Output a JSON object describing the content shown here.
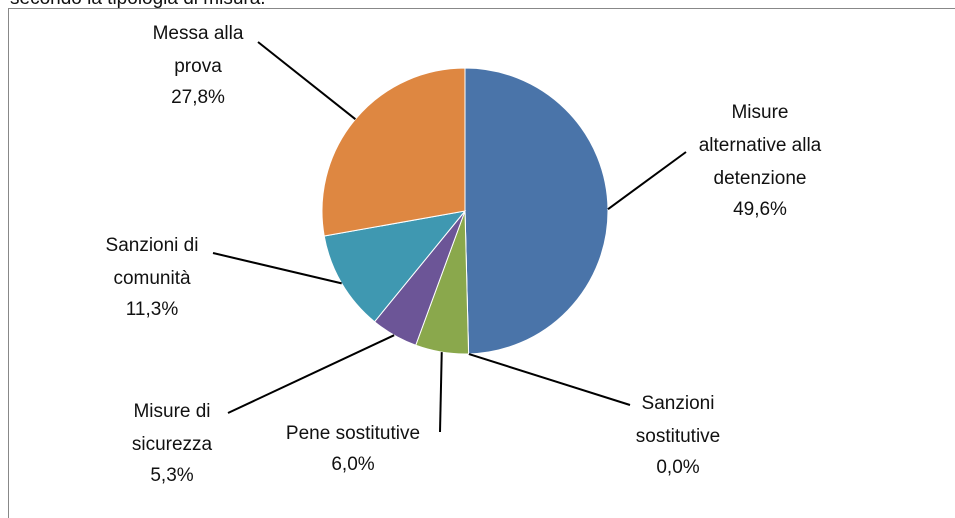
{
  "chart_data": {
    "type": "pie",
    "title": "secondo la tipologia di misura.",
    "categories": [
      "Misure\nalternative alla\ndetenzione",
      "Sanzioni\nsostitutive",
      "Pene sostitutive",
      "Misure di\nsicurezza",
      "Sanzioni di\ncomunità",
      "Messa alla\nprova"
    ],
    "values": [
      49.6,
      0.0,
      6.0,
      5.3,
      11.3,
      27.8
    ],
    "value_labels": [
      "49,6%",
      "0,0%",
      "6,0%",
      "5,3%",
      "11,3%",
      "27,8%"
    ],
    "colors": [
      "#4a74a9",
      "#b04846",
      "#8aa84c",
      "#6c5597",
      "#3f98b1",
      "#de8741"
    ]
  }
}
